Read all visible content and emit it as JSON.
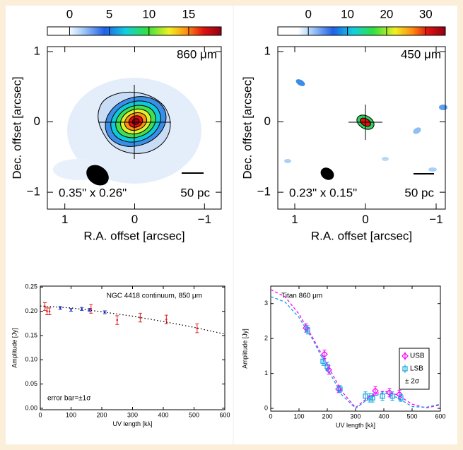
{
  "chart_data": [
    {
      "type": "image",
      "colorbar": {
        "lim": [
          -2.8,
          19.1
        ],
        "ticks": [
          0,
          5,
          10,
          15
        ]
      },
      "xlabel": "R.A. offset [arcsec]",
      "ylabel": "Dec. offset [arcsec]",
      "xlim": [
        1.25,
        -1.24
      ],
      "xticks": [
        1,
        0,
        {
          "value": -1,
          "label": "−1"
        }
      ],
      "ylim": [
        -1.24,
        1.07
      ],
      "yticks": [
        {
          "value": -1,
          "label": "−1"
        },
        0,
        1
      ],
      "annotations": [
        "860 μm",
        "0.35\" x 0.26\"",
        "50 pc"
      ]
    },
    {
      "type": "image",
      "colorbar": {
        "lim": [
          -7.8,
          35
        ],
        "ticks": [
          0,
          10,
          20,
          30
        ]
      },
      "xlabel": "R.A. offset [arcsec]",
      "ylabel": "Dec. offset [arcsec]",
      "xlim": [
        1.24,
        -1.13
      ],
      "xticks": [
        1,
        0,
        {
          "value": -1,
          "label": "−1"
        }
      ],
      "ylim": [
        -1.24,
        1.07
      ],
      "yticks": [
        {
          "value": -1,
          "label": "−1"
        },
        0,
        1
      ],
      "annotations": [
        "450 μm",
        "0.23\" x 0.15\"",
        "50 pc"
      ]
    },
    {
      "type": "errorbar",
      "title": "NGC 4418 continuum, 850 μm",
      "note": "error bar=±1σ",
      "xlabel": "UV length [kλ]",
      "ylabel": "Amplitude [Jy]",
      "xlim": [
        0,
        600
      ],
      "xticks": [
        0,
        100,
        200,
        300,
        400,
        500,
        600
      ],
      "ylim": [
        -0.003,
        0.252
      ],
      "yticks": [
        {
          "value": 0,
          "label": "0.00"
        },
        {
          "value": 0.05,
          "label": "0.05"
        },
        {
          "value": 0.1,
          "label": "0.10"
        },
        {
          "value": 0.15,
          "label": "0.15"
        },
        {
          "value": 0.2,
          "label": "0.20"
        },
        {
          "value": 0.25,
          "label": "0.25"
        }
      ],
      "series": [
        {
          "color": "#e02020",
          "marker": "dot",
          "x": [
            15,
            22,
            30,
            165,
            250,
            325,
            410,
            510
          ],
          "values": [
            0.21,
            0.2,
            0.2,
            0.205,
            0.182,
            0.187,
            0.183,
            0.165
          ],
          "errors": [
            0.008,
            0.007,
            0.007,
            0.009,
            0.009,
            0.009,
            0.009,
            0.009
          ]
        },
        {
          "color": "#2030d0",
          "marker": "dot",
          "x": [
            65,
            100,
            135,
            160,
            210
          ],
          "values": [
            0.207,
            0.203,
            0.205,
            0.203,
            0.198
          ],
          "errors": [
            0.003,
            0.003,
            0.003,
            0.003,
            0.003
          ]
        },
        {
          "color": "#000000",
          "style": "dotted",
          "x": [
            0,
            100,
            200,
            300,
            400,
            500,
            600
          ],
          "values": [
            0.211,
            0.207,
            0.199,
            0.19,
            0.179,
            0.167,
            0.153
          ]
        }
      ]
    },
    {
      "type": "errorbar",
      "title": "Titan  860 μm",
      "legend_note": "± 2σ",
      "xlabel": "UV length [kλ]",
      "ylabel": "Amplitude [Jy]",
      "xlim": [
        0,
        600
      ],
      "xticks": [
        0,
        100,
        200,
        300,
        400,
        500,
        600
      ],
      "ylim": [
        -0.08,
        3.5
      ],
      "yticks": [
        0,
        1,
        2,
        3
      ],
      "series": [
        {
          "name": "USB",
          "color": "#ff00ff",
          "marker": "diamond",
          "x": [
            125,
            190,
            205,
            240,
            370,
            420,
            455
          ],
          "values": [
            2.3,
            1.55,
            1.1,
            0.55,
            0.5,
            0.45,
            0.4
          ],
          "errors": [
            0.12,
            0.12,
            0.12,
            0.1,
            0.12,
            0.12,
            0.12
          ]
        },
        {
          "name": "LSB",
          "color": "#10a0e0",
          "marker": "square",
          "x": [
            130,
            185,
            200,
            245,
            335,
            350,
            360,
            395,
            430,
            460
          ],
          "values": [
            2.25,
            1.35,
            1.2,
            0.55,
            0.35,
            0.3,
            0.3,
            0.35,
            0.35,
            0.3
          ],
          "errors": [
            0.12,
            0.12,
            0.12,
            0.1,
            0.12,
            0.12,
            0.12,
            0.12,
            0.12,
            0.1
          ]
        },
        {
          "color": "#ff00ff",
          "style": "dashed",
          "x": [
            0,
            50,
            100,
            150,
            200,
            250,
            300,
            350,
            400,
            450,
            500,
            550,
            600
          ],
          "values": [
            3.4,
            3.2,
            2.7,
            2.0,
            1.25,
            0.5,
            0.02,
            0.35,
            0.5,
            0.38,
            0.12,
            0.01,
            0.1
          ]
        },
        {
          "color": "#10a0e0",
          "style": "dashed",
          "x": [
            0,
            50,
            100,
            150,
            200,
            250,
            300,
            350,
            400,
            450,
            500,
            550,
            600
          ],
          "values": [
            3.2,
            3.05,
            2.6,
            1.95,
            1.15,
            0.4,
            0.0,
            0.3,
            0.45,
            0.3,
            0.05,
            0.03,
            0.12
          ]
        }
      ]
    }
  ]
}
